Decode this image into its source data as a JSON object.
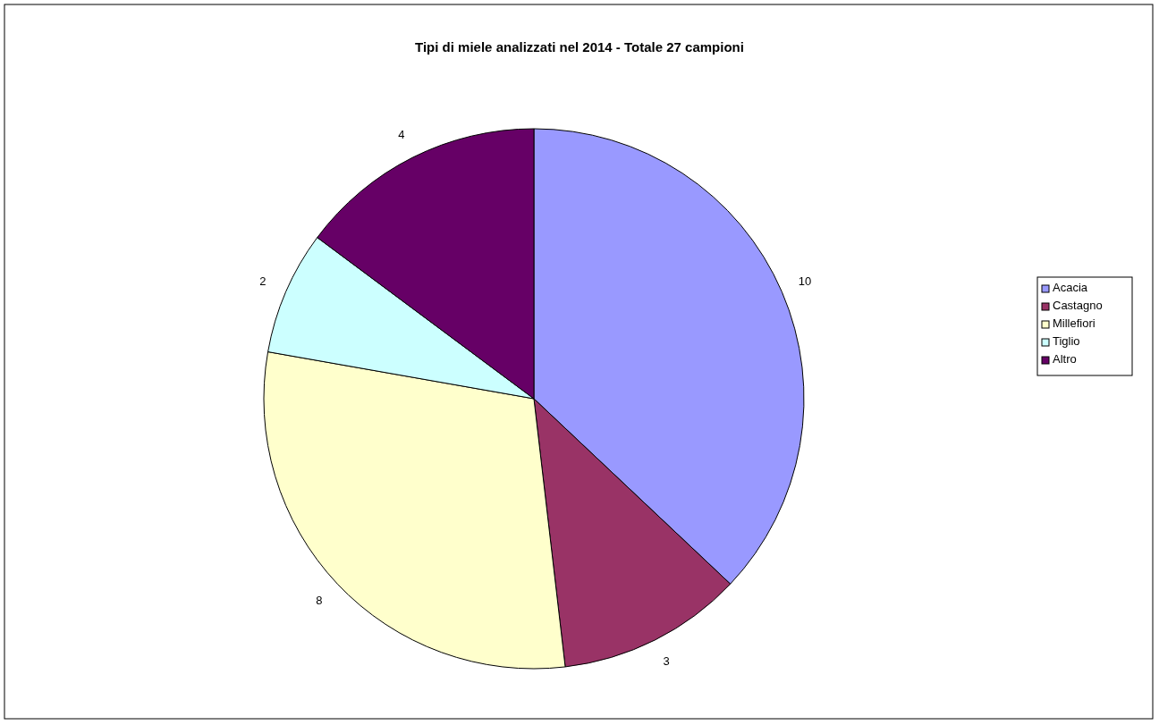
{
  "chart_data": {
    "type": "pie",
    "title": "Tipi di miele analizzati nel 2014 - Totale 27 campioni",
    "categories": [
      "Acacia",
      "Castagno",
      "Millefiori",
      "Tiglio",
      "Altro"
    ],
    "values": [
      10,
      3,
      8,
      2,
      4
    ],
    "colors": [
      "#9999ff",
      "#993366",
      "#ffffcc",
      "#ccffff",
      "#660066"
    ],
    "data_labels": true,
    "legend": "right"
  }
}
